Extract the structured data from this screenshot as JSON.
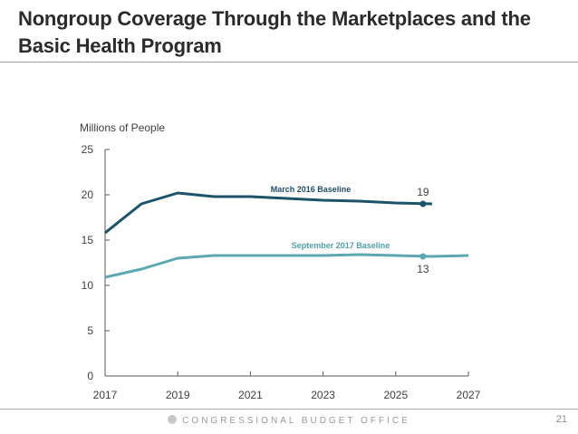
{
  "slide": {
    "title": "Nongroup Coverage Through the Marketplaces and the Basic Health Program",
    "footer_text": "CONGRESSIONAL BUDGET OFFICE",
    "footer_icon": "cbo-logo-icon",
    "page_number": "21"
  },
  "chart_data": {
    "type": "line",
    "title": "Nongroup Coverage Through the Marketplaces and the Basic Health Program",
    "xlabel": "",
    "ylabel": "Millions of People",
    "xlim": [
      2017,
      2027
    ],
    "ylim": [
      0,
      25
    ],
    "x_ticks": [
      2017,
      2019,
      2021,
      2023,
      2025,
      2027
    ],
    "x_tick_labels": [
      "2017",
      "2019",
      "2021",
      "2023",
      "2025",
      "2027"
    ],
    "y_ticks": [
      0,
      5,
      10,
      15,
      20,
      25
    ],
    "y_tick_labels": [
      "0",
      "5",
      "10",
      "15",
      "20",
      "25"
    ],
    "grid": false,
    "legend": "inline-labels",
    "series": [
      {
        "name": "March 2016 Baseline",
        "color": "#1b5369",
        "label_color": "#1f4e6a",
        "x": [
          2017,
          2018,
          2019,
          2020,
          2021,
          2022,
          2023,
          2024,
          2025,
          2026
        ],
        "values": [
          15.8,
          19.0,
          20.2,
          19.8,
          19.8,
          19.6,
          19.4,
          19.3,
          19.1,
          19.0
        ],
        "marker": {
          "x": 2025.75,
          "value": 19.0,
          "label": "19"
        }
      },
      {
        "name": "September 2017 Baseline",
        "color": "#5ba8b0",
        "label_color": "#4fa0aa",
        "x": [
          2017,
          2018,
          2019,
          2020,
          2021,
          2022,
          2023,
          2024,
          2025,
          2026,
          2027
        ],
        "values": [
          10.9,
          11.8,
          13.0,
          13.3,
          13.3,
          13.3,
          13.3,
          13.4,
          13.3,
          13.2,
          13.3
        ],
        "marker": {
          "x": 2025.75,
          "value": 13.2,
          "label": "13"
        }
      }
    ]
  }
}
